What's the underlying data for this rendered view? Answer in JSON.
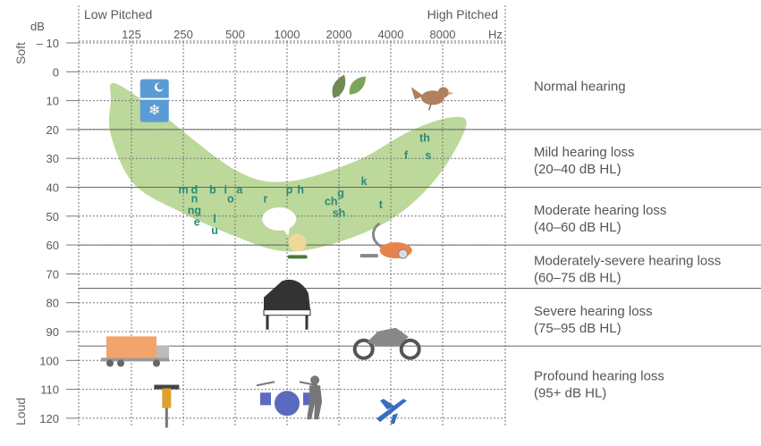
{
  "chart_data": {
    "type": "audiogram",
    "header": {
      "left": "Low Pitched",
      "right": "High Pitched"
    },
    "y_unit": "dB",
    "x_unit": "Hz",
    "side_labels": {
      "top": "Soft",
      "bottom": "Loud"
    },
    "x_ticks": [
      "125",
      "250",
      "500",
      "1000",
      "2000",
      "4000",
      "8000"
    ],
    "y_ticks": [
      -10,
      0,
      10,
      20,
      30,
      40,
      50,
      60,
      70,
      80,
      90,
      100,
      110,
      120
    ],
    "y_tick_labels": [
      "– 10",
      "0",
      "10",
      "20",
      "30",
      "40",
      "50",
      "60",
      "70",
      "80",
      "90",
      "100",
      "110",
      "120"
    ],
    "ylim": [
      -10,
      120
    ],
    "categories": [
      {
        "label": "Normal hearing",
        "range": "",
        "from": -10,
        "to": 20
      },
      {
        "label": "Mild hearing loss",
        "range": "(20–40 dB HL)",
        "from": 20,
        "to": 40
      },
      {
        "label": "Moderate hearing loss",
        "range": "(40–60 dB HL)",
        "from": 40,
        "to": 60
      },
      {
        "label": "Moderately-severe hearing loss",
        "range": "(60–75 dB HL)",
        "from": 60,
        "to": 75
      },
      {
        "label": "Severe hearing loss",
        "range": "(75–95 dB HL)",
        "from": 75,
        "to": 95
      },
      {
        "label": "Profound hearing loss",
        "range": "(95+ dB HL)",
        "from": 95,
        "to": 120
      }
    ],
    "speech_sounds": [
      {
        "text": "m",
        "freq": 250,
        "db": 41
      },
      {
        "text": "d",
        "freq": 290,
        "db": 41
      },
      {
        "text": "n",
        "freq": 290,
        "db": 44
      },
      {
        "text": "ng",
        "freq": 290,
        "db": 48
      },
      {
        "text": "e",
        "freq": 300,
        "db": 52
      },
      {
        "text": "b",
        "freq": 370,
        "db": 41
      },
      {
        "text": "l",
        "freq": 380,
        "db": 51
      },
      {
        "text": "u",
        "freq": 380,
        "db": 55
      },
      {
        "text": "i",
        "freq": 440,
        "db": 41
      },
      {
        "text": "o",
        "freq": 470,
        "db": 44
      },
      {
        "text": "a",
        "freq": 530,
        "db": 41
      },
      {
        "text": "r",
        "freq": 750,
        "db": 44
      },
      {
        "text": "p",
        "freq": 1030,
        "db": 41
      },
      {
        "text": "h",
        "freq": 1200,
        "db": 41
      },
      {
        "text": "ch",
        "freq": 1800,
        "db": 45
      },
      {
        "text": "g",
        "freq": 2050,
        "db": 42
      },
      {
        "text": "sh",
        "freq": 2000,
        "db": 49
      },
      {
        "text": "k",
        "freq": 2800,
        "db": 38
      },
      {
        "text": "t",
        "freq": 3500,
        "db": 46
      },
      {
        "text": "f",
        "freq": 4900,
        "db": 29
      },
      {
        "text": "th",
        "freq": 6300,
        "db": 23
      },
      {
        "text": "s",
        "freq": 6600,
        "db": 29
      }
    ],
    "speech_banana": {
      "color": "#bcd89a",
      "outline": [
        [
          100,
          4
        ],
        [
          180,
          14
        ],
        [
          500,
          34
        ],
        [
          1000,
          38
        ],
        [
          2500,
          31
        ],
        [
          5000,
          21
        ],
        [
          8500,
          16
        ],
        [
          11000,
          18
        ],
        [
          8000,
          34
        ],
        [
          5000,
          47
        ],
        [
          3000,
          55
        ],
        [
          1500,
          61
        ],
        [
          900,
          62
        ],
        [
          500,
          57
        ],
        [
          250,
          49
        ],
        [
          130,
          39
        ],
        [
          95,
          22
        ],
        [
          95,
          10
        ]
      ]
    },
    "sound_icons": [
      {
        "icon": "fridge-icon",
        "freq": 170,
        "db": 10,
        "color": "#5b9bd5"
      },
      {
        "icon": "leaves-icon",
        "freq": 2200,
        "db": 6,
        "color": "#7aa55a"
      },
      {
        "icon": "bird-icon",
        "freq": 7000,
        "db": 9,
        "color": "#b08060"
      },
      {
        "icon": "speech-bubble-icon",
        "freq": 900,
        "db": 51,
        "color": "#ffffff"
      },
      {
        "icon": "lamp-icon",
        "freq": 1150,
        "db": 61,
        "color": "#f0d79a"
      },
      {
        "icon": "vacuum-icon",
        "freq": 3800,
        "db": 60,
        "color": "#e8834a"
      },
      {
        "icon": "piano-icon",
        "freq": 1000,
        "db": 80,
        "color": "#333333"
      },
      {
        "icon": "truck-icon",
        "freq": 125,
        "db": 96,
        "color": "#f2a46b"
      },
      {
        "icon": "motorcycle-icon",
        "freq": 3800,
        "db": 93,
        "color": "#888888"
      },
      {
        "icon": "jackhammer-icon",
        "freq": 200,
        "db": 114,
        "color": "#e0a030"
      },
      {
        "icon": "drums-icon",
        "freq": 1000,
        "db": 113,
        "color": "#5a6abf"
      },
      {
        "icon": "singer-icon",
        "freq": 1450,
        "db": 113,
        "color": "#777777"
      },
      {
        "icon": "airplane-icon",
        "freq": 4000,
        "db": 117,
        "color": "#3a6cc0"
      }
    ],
    "colors": {
      "banana": "#bcd89a",
      "grid_dotted": "#777777",
      "band_line": "#666666",
      "speech_text": "#2a8a78",
      "text": "#555555"
    },
    "grid": true
  }
}
